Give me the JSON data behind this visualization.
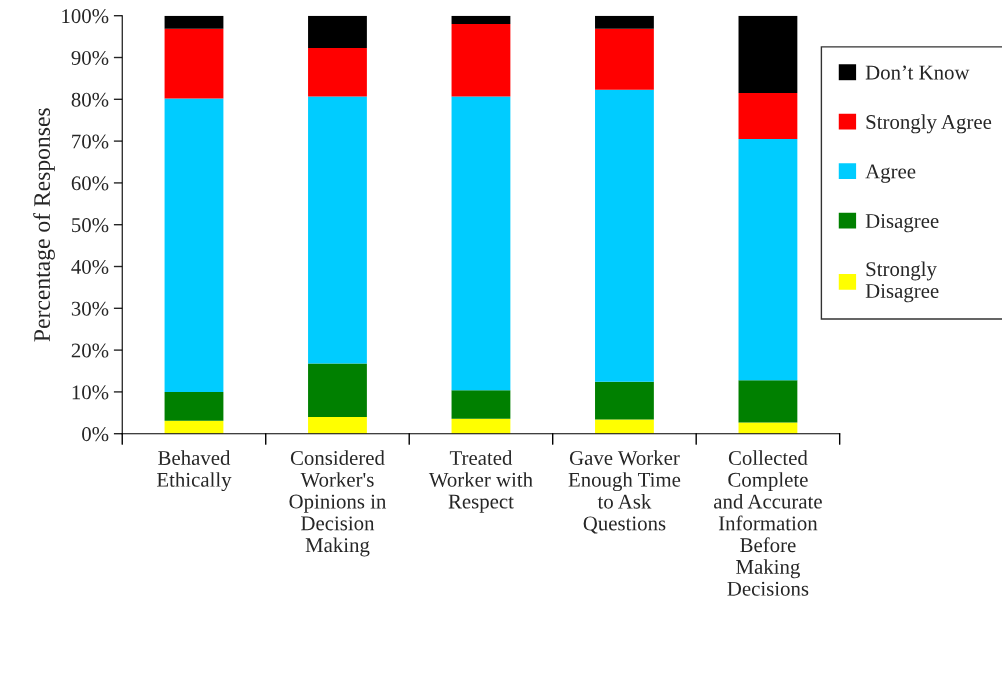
{
  "chart_data": {
    "type": "bar",
    "stacked": true,
    "ylabel": "Percentage of Responses",
    "categories": [
      "Behaved\nEthically",
      "Considered\nWorker's\nOpinions in\nDecision\nMaking",
      "Treated\nWorker with\nRespect",
      "Gave Worker\nEnough Time\nto Ask\nQuestions",
      "Collected\nComplete\nand Accurate\nInformation\nBefore\nMaking\nDecisions"
    ],
    "series": [
      {
        "name": "Strongly\nDisagree",
        "color": "#ffff00",
        "values": [
          3.1,
          4.0,
          3.6,
          3.4,
          2.7
        ]
      },
      {
        "name": "Disagree",
        "color": "#008000",
        "values": [
          6.9,
          12.8,
          6.8,
          9.0,
          10.1
        ]
      },
      {
        "name": "Agree",
        "color": "#00ccff",
        "values": [
          70.2,
          63.9,
          70.3,
          69.9,
          57.7
        ]
      },
      {
        "name": "Strongly Agree",
        "color": "#ff0000",
        "values": [
          16.7,
          11.6,
          17.3,
          14.6,
          11.0
        ]
      },
      {
        "name": "Don’t Know",
        "color": "#000000",
        "values": [
          3.1,
          7.7,
          2.0,
          3.1,
          18.5
        ]
      }
    ],
    "ylim": [
      0,
      100
    ],
    "yticks": [
      {
        "value": 0,
        "label": "0%"
      },
      {
        "value": 10,
        "label": "10%"
      },
      {
        "value": 20,
        "label": "20%"
      },
      {
        "value": 30,
        "label": "30%"
      },
      {
        "value": 40,
        "label": "40%"
      },
      {
        "value": 50,
        "label": "50%"
      },
      {
        "value": 60,
        "label": "60%"
      },
      {
        "value": 70,
        "label": "70%"
      },
      {
        "value": 80,
        "label": "80%"
      },
      {
        "value": 90,
        "label": "90%"
      },
      {
        "value": 100,
        "label": "100%"
      }
    ],
    "grid": false,
    "legend": "right"
  }
}
